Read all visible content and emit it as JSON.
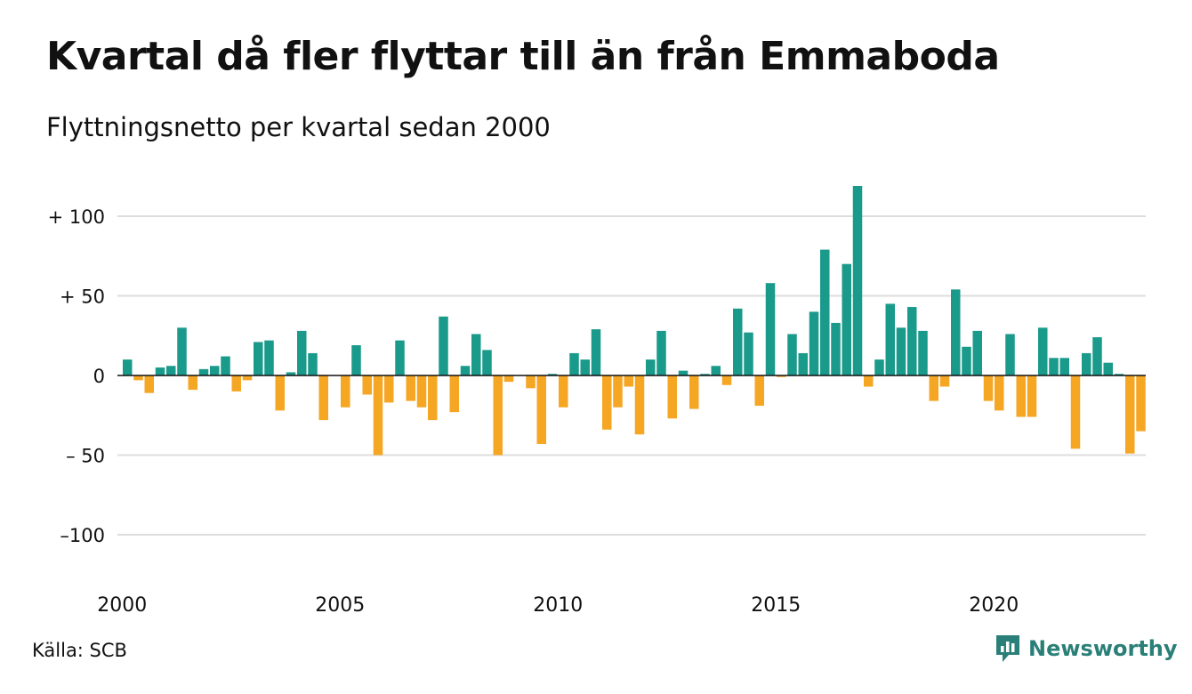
{
  "header": {
    "title": "Kvartal då fler flyttar till än från Emmaboda",
    "subtitle": "Flyttningsnetto per kvartal sedan 2000"
  },
  "footer": {
    "source": "Källa: SCB",
    "brand": "Newsworthy",
    "brand_icon": "newsworthy-logo-icon"
  },
  "colors": {
    "positive": "#1a9a8a",
    "negative": "#f5a623",
    "grid": "#dddddd",
    "brand": "#2a8078"
  },
  "chart_data": {
    "type": "bar",
    "x_start": "2000 Q1",
    "x_ticks": [
      "2000",
      "2005",
      "2010",
      "2015",
      "2020"
    ],
    "y_ticks": [
      {
        "value": 100,
        "label": "+ 100"
      },
      {
        "value": 50,
        "label": "+  50"
      },
      {
        "value": 0,
        "label": "0"
      },
      {
        "value": -50,
        "label": "– 50"
      },
      {
        "value": -100,
        "label": "–100"
      }
    ],
    "ylim": [
      -125,
      120
    ],
    "grid": true,
    "legend": "none",
    "values": [
      10,
      -3,
      -11,
      5,
      6,
      30,
      -9,
      4,
      6,
      12,
      -10,
      -3,
      21,
      22,
      -22,
      2,
      28,
      14,
      -28,
      0,
      -20,
      19,
      -12,
      -50,
      -17,
      22,
      -16,
      -20,
      -28,
      37,
      -23,
      6,
      26,
      16,
      -50,
      -4,
      0,
      -8,
      -43,
      1,
      -20,
      14,
      10,
      29,
      -34,
      -20,
      -7,
      -37,
      10,
      28,
      -27,
      3,
      -21,
      1,
      6,
      -6,
      42,
      27,
      -19,
      58,
      -1,
      26,
      14,
      40,
      79,
      33,
      70,
      119,
      -7,
      10,
      45,
      30,
      43,
      28,
      -16,
      -7,
      54,
      18,
      28,
      -16,
      -22,
      26,
      -26,
      -26,
      30,
      11,
      11,
      -46,
      14,
      24,
      8,
      1,
      -49,
      -35
    ]
  }
}
